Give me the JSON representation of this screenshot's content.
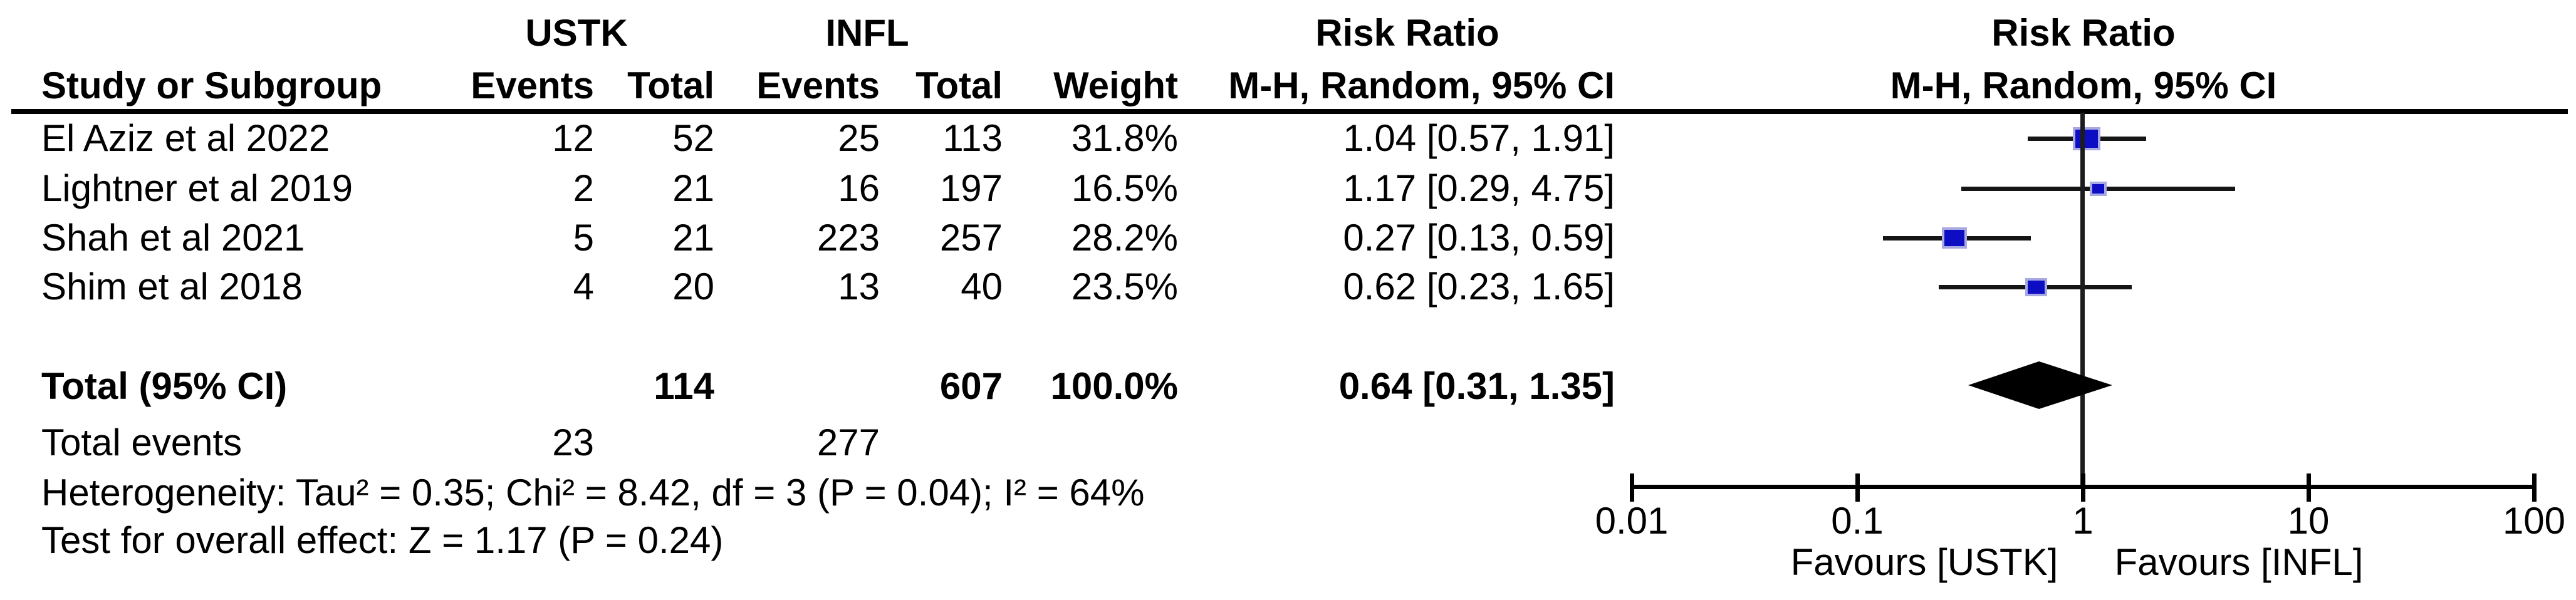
{
  "table": {
    "group1_label": "USTK",
    "group2_label": "INFL",
    "headers": {
      "study": "Study or Subgroup",
      "events": "Events",
      "total": "Total",
      "weight": "Weight",
      "effect_title": "Risk Ratio",
      "effect_sub": "M-H, Random, 95% CI"
    },
    "plot_headers": {
      "effect_title": "Risk Ratio",
      "effect_sub": "M-H, Random, 95% CI"
    }
  },
  "chart_data": {
    "type": "forest",
    "effect_measure": "Risk Ratio",
    "model": "M-H, Random, 95% CI",
    "x_scale": "log10",
    "x_range": [
      0.01,
      100
    ],
    "axis_tick_labels": [
      "0.01",
      "0.1",
      "1",
      "10",
      "100"
    ],
    "favours_left": "Favours [USTK]",
    "favours_right": "Favours [INFL]",
    "marker_color": "#0d0dc4",
    "diamond_color": "#000000",
    "studies": [
      {
        "name": "El Aziz et al 2022",
        "events_ustk": 12,
        "total_ustk": 52,
        "events_infl": 25,
        "total_infl": 113,
        "weight_label": "31.8%",
        "weight_pct": 31.8,
        "rr": 1.04,
        "ci_low": 0.57,
        "ci_high": 1.91,
        "rr_label": "1.04 [0.57, 1.91]"
      },
      {
        "name": "Lightner et al 2019",
        "events_ustk": 2,
        "total_ustk": 21,
        "events_infl": 16,
        "total_infl": 197,
        "weight_label": "16.5%",
        "weight_pct": 16.5,
        "rr": 1.17,
        "ci_low": 0.29,
        "ci_high": 4.75,
        "rr_label": "1.17 [0.29, 4.75]"
      },
      {
        "name": "Shah et al 2021",
        "events_ustk": 5,
        "total_ustk": 21,
        "events_infl": 223,
        "total_infl": 257,
        "weight_label": "28.2%",
        "weight_pct": 28.2,
        "rr": 0.27,
        "ci_low": 0.13,
        "ci_high": 0.59,
        "rr_label": "0.27 [0.13, 0.59]"
      },
      {
        "name": "Shim et al 2018",
        "events_ustk": 4,
        "total_ustk": 20,
        "events_infl": 13,
        "total_infl": 40,
        "weight_label": "23.5%",
        "weight_pct": 23.5,
        "rr": 0.62,
        "ci_low": 0.23,
        "ci_high": 1.65,
        "rr_label": "0.62 [0.23, 1.65]"
      }
    ],
    "total": {
      "label": "Total (95% CI)",
      "total_ustk": 114,
      "total_infl": 607,
      "weight_label": "100.0%",
      "rr": 0.64,
      "ci_low": 0.31,
      "ci_high": 1.35,
      "rr_label": "0.64 [0.31, 1.35]"
    },
    "total_events": {
      "label": "Total events",
      "ustk": 23,
      "infl": 277
    },
    "heterogeneity": "Heterogeneity: Tau² = 0.35; Chi² = 8.42, df = 3 (P = 0.04); I² = 64%",
    "overall_effect": "Test for overall effect: Z = 1.17 (P = 0.24)"
  }
}
